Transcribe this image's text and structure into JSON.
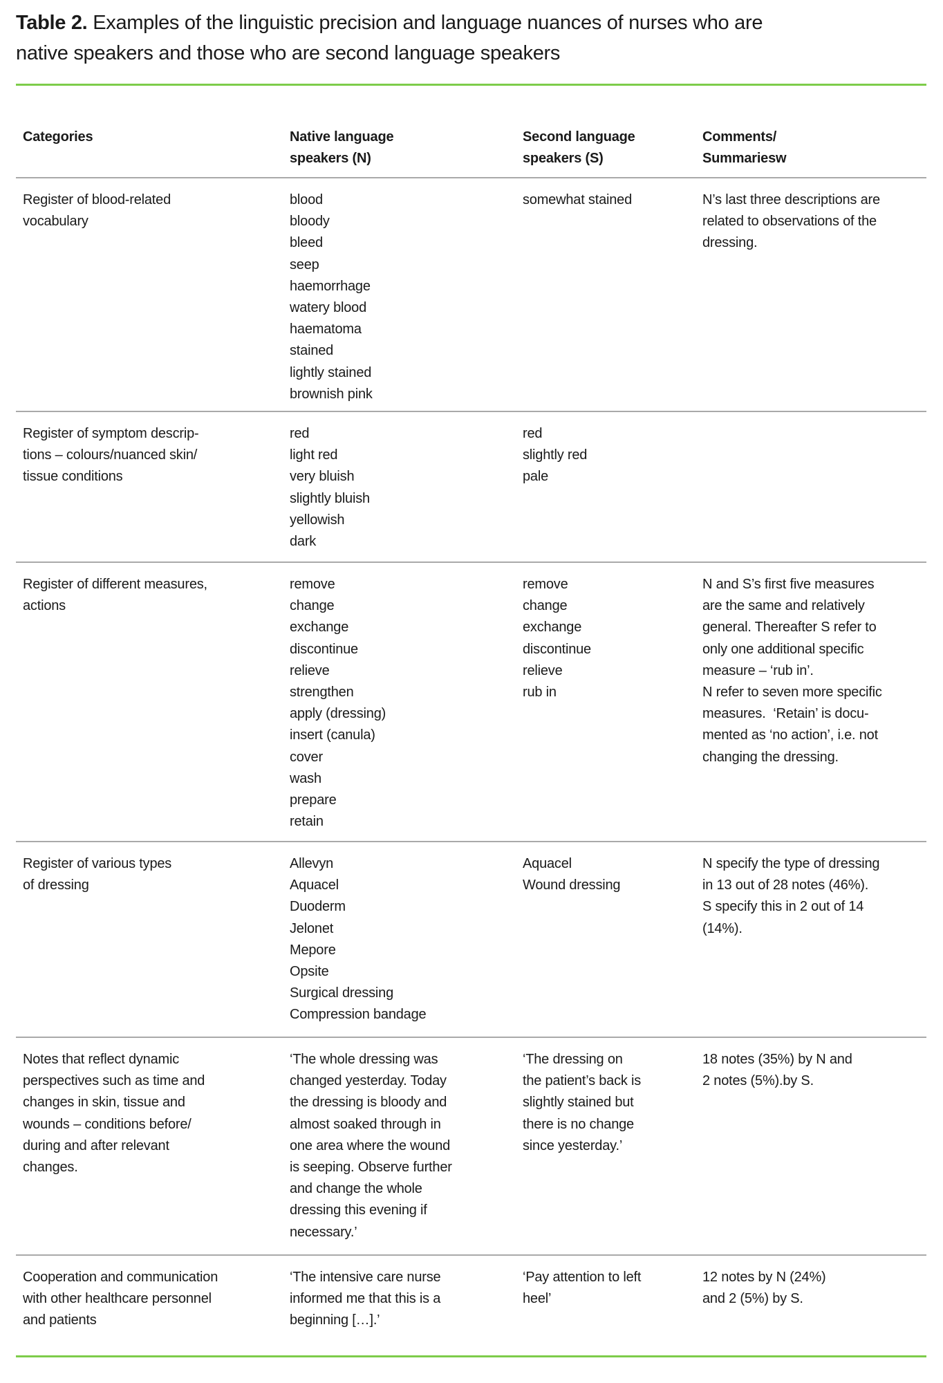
{
  "title": {
    "label": "Table 2.",
    "text": "Examples of the linguistic precision and language nuances of nurses who are\nnative speakers and those who are second language speakers"
  },
  "colors": {
    "accent_rule": "#7dcc4a",
    "row_rule": "#a9a9a9"
  },
  "table": {
    "headers": [
      "Categories",
      "Native language\nspeakers (N)",
      "Second language\nspeakers (S)",
      "Comments/\nSummariesw"
    ],
    "rows": [
      [
        "Register of blood-related\nvocabulary",
        "blood\nbloody\nbleed\nseep\nhaemorrhage\nwatery blood\nhaematoma\nstained\nlightly stained\nbrownish pink",
        "somewhat stained",
        "N’s last three descriptions are\nrelated to observations of the\ndressing."
      ],
      [
        "Register of symptom descrip-\ntions – colours/nuanced skin/\ntissue conditions",
        "red\nlight red\nvery bluish\nslightly bluish\nyellowish\ndark",
        "red\nslightly red\npale",
        ""
      ],
      [
        "Register of different measures,\nactions",
        "remove\nchange\nexchange\ndiscontinue\nrelieve\nstrengthen\napply (dressing)\ninsert (canula)\ncover\nwash\nprepare\nretain",
        "remove\nchange\nexchange\ndiscontinue\nrelieve\nrub in",
        "N and S’s first five measures\nare the same and relatively\ngeneral. Thereafter S refer to\nonly one additional specific\nmeasure – ‘rub in’.\nN refer to seven more specific\nmeasures.  ‘Retain’ is docu-\nmented as ‘no action’, i.e. not\nchanging the dressing."
      ],
      [
        "Register of various types\nof dressing",
        "Allevyn\nAquacel\nDuoderm\nJelonet\nMepore\nOpsite\nSurgical dressing\nCompression bandage",
        "Aquacel\nWound dressing",
        "N specify the type of dressing\nin 13 out of 28 notes (46%).\nS specify this in 2 out of 14\n(14%)."
      ],
      [
        "Notes that reflect dynamic\nperspectives such as time and\nchanges in skin, tissue and\nwounds – conditions before/\nduring and after relevant\nchanges.",
        "‘The whole dressing was\nchanged yesterday. Today\nthe dressing is bloody and\nalmost soaked through in\none area where the wound\nis seeping. Observe further\nand change the whole\ndressing this evening if\nnecessary.’",
        "‘The dressing on\nthe patient’s back is\nslightly stained but\nthere is no change\nsince yesterday.’",
        "18 notes (35%) by N and\n2 notes (5%).by S."
      ],
      [
        "Cooperation and communication\nwith other healthcare personnel\nand patients",
        "‘The intensive care nurse\ninformed me that this is a\nbeginning […].’",
        "‘Pay attention to left\nheel’",
        "12 notes by N (24%)\nand 2 (5%) by S."
      ]
    ]
  }
}
